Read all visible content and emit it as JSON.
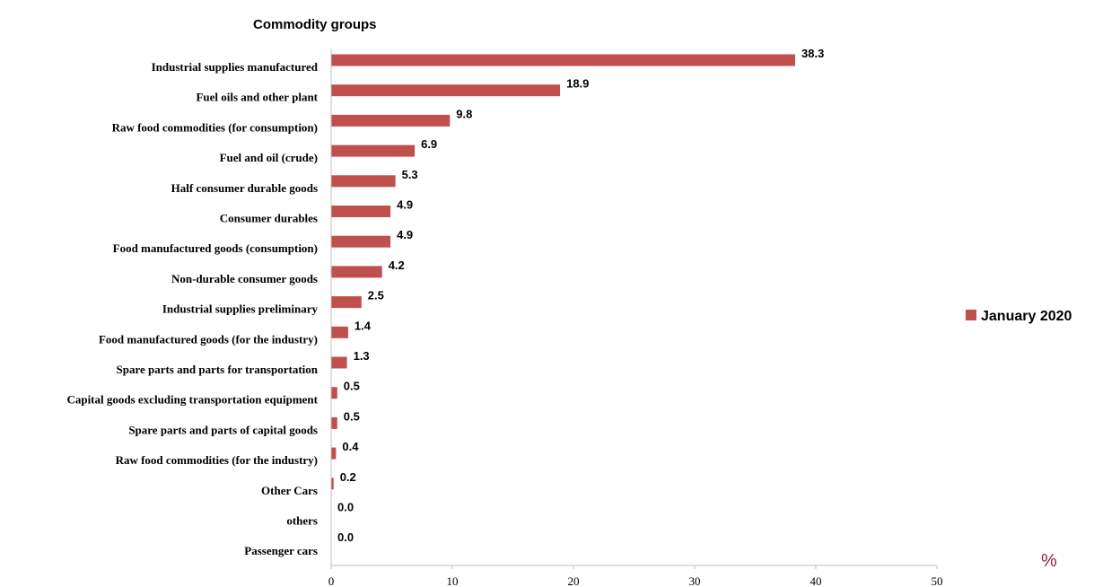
{
  "chart_data": {
    "type": "bar",
    "orientation": "horizontal",
    "title": "Commodity groups",
    "xlabel": "%",
    "ylabel": "",
    "xlim": [
      0,
      50
    ],
    "x_ticks": [
      "0",
      "10",
      "20",
      "30",
      "40",
      "50"
    ],
    "grid": false,
    "legend_position": "right",
    "categories": [
      "Industrial supplies manufactured",
      "Fuel oils and other plant",
      "Raw food commodities (for consumption)",
      "Fuel and oil (crude)",
      "Half consumer durable goods",
      "Consumer durables",
      "Food manufactured goods (consumption)",
      "Non-durable consumer goods",
      "Industrial supplies preliminary",
      "Food manufactured goods (for the industry)",
      "Spare parts and parts for transportation",
      "Capital goods excluding transportation equipment",
      "Spare parts and parts of capital goods",
      "Raw food commodities (for the industry)",
      "Other Cars",
      "others",
      "Passenger cars"
    ],
    "series": [
      {
        "name": "January 2020",
        "color": "#c0504d",
        "values": [
          38.3,
          18.9,
          9.8,
          6.9,
          5.3,
          4.9,
          4.9,
          4.2,
          2.5,
          1.4,
          1.3,
          0.5,
          0.5,
          0.4,
          0.2,
          0.0,
          0.0
        ],
        "labels": [
          "38.3",
          "18.9",
          "9.8",
          "6.9",
          "5.3",
          "4.9",
          "4.9",
          "4.2",
          "2.5",
          "1.4",
          "1.3",
          "0.5",
          "0.5",
          "0.4",
          "0.2",
          "0.0",
          "0.0"
        ]
      }
    ]
  }
}
